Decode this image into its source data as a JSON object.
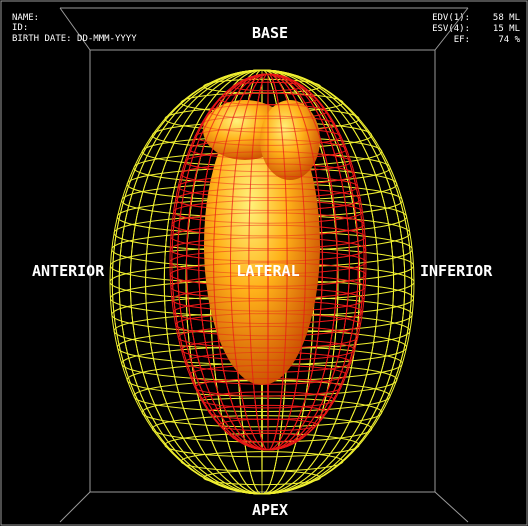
{
  "header": {
    "name": "NAME:",
    "id": "ID:",
    "birth_date": "BIRTH DATE: DD-MMM-YYYY"
  },
  "results": [
    {
      "label": "EDV(1):",
      "value": "58 ML"
    },
    {
      "label": "ESV(4):",
      "value": "15 ML"
    },
    {
      "label": "EF:",
      "value": "74 %"
    }
  ],
  "labels": {
    "top": "BASE",
    "bottom": "APEX",
    "left": "ANTERIOR",
    "center": "LATERAL",
    "right": "INFERIOR"
  }
}
